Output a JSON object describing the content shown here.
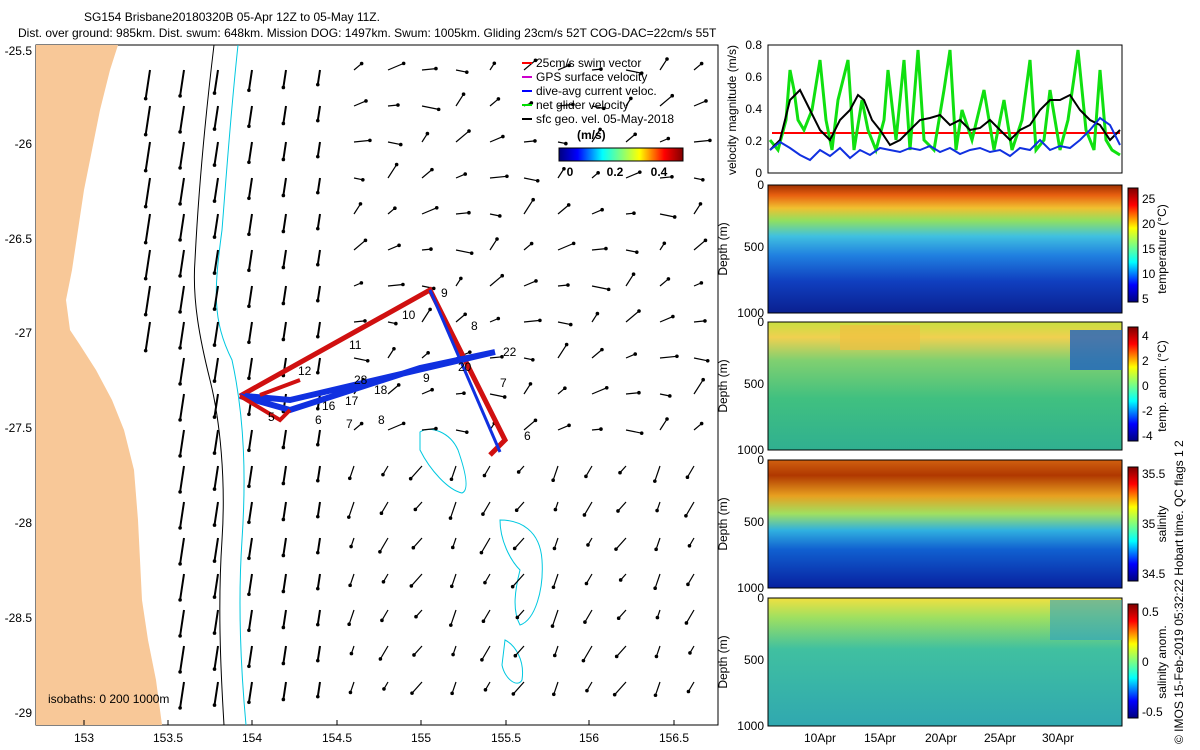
{
  "title": {
    "line1": "SG154 Brisbane20180320B 05-Apr 12Z to 05-May 11Z.",
    "line2": "Dist. over ground: 985km. Dist. swum: 648km. Mission DOG: 1497km. Swum: 1005km. Gliding 23cm/s 52T COG-DAC=22cm/s 55T"
  },
  "map": {
    "lon_ticks": [
      "153",
      "153.5",
      "154",
      "154.5",
      "155",
      "155.5",
      "156",
      "156.5"
    ],
    "lat_ticks": [
      "-25.5",
      "-26",
      "-26.5",
      "-27",
      "-27.5",
      "-28",
      "-28.5",
      "-29"
    ],
    "legend": {
      "items": [
        {
          "label": "25cm/s swim vector",
          "color": "#ff0000"
        },
        {
          "label": "GPS surface velocity",
          "color": "#cc00cc"
        },
        {
          "label": "dive-avg current veloc.",
          "color": "#0000ff"
        },
        {
          "label": "net glider velocity",
          "color": "#00dd00"
        },
        {
          "label": "sfc geo. vel. 05-May-2018",
          "color": "#000000"
        }
      ],
      "colorbar_title": "(m/s)",
      "colorbar_ticks": [
        "0",
        "0.2",
        "0.4"
      ]
    },
    "isobaths_label": "isobaths: 0   200  1000m",
    "track_day_labels": [
      "9",
      "10",
      "11",
      "12",
      "8",
      "22",
      "20",
      "7",
      "6",
      "5",
      "6",
      "7",
      "8",
      "18",
      "17",
      "16",
      "28",
      "9"
    ]
  },
  "velocity_panel": {
    "ylabel": "velocity magnitude (m/s)",
    "yticks": [
      "0",
      "0.2",
      "0.4",
      "0.6",
      "0.8"
    ],
    "swim_reference": 0.25
  },
  "section_panels": [
    {
      "name": "temperature",
      "clabel": "temperature (°C)",
      "cticks": [
        "25",
        "20",
        "15",
        "10",
        "5"
      ],
      "yticks": [
        "0",
        "500",
        "1000"
      ],
      "ylabel": "Depth (m)"
    },
    {
      "name": "temp-anomaly",
      "clabel": "temp. anom. (°C)",
      "cticks": [
        "4",
        "2",
        "0",
        "-2",
        "-4"
      ],
      "yticks": [
        "0",
        "500",
        "1000"
      ],
      "ylabel": "Depth (m)"
    },
    {
      "name": "salinity",
      "clabel": "salinity",
      "cticks": [
        "35.5",
        "35",
        "34.5"
      ],
      "yticks": [
        "0",
        "500",
        "1000"
      ],
      "ylabel": "Depth (m)"
    },
    {
      "name": "salinity-anomaly",
      "clabel": "salinity anom.",
      "cticks": [
        "0.5",
        "0",
        "-0.5"
      ],
      "yticks": [
        "0",
        "500",
        "1000"
      ],
      "ylabel": "Depth (m)"
    }
  ],
  "time_axis": [
    "10Apr",
    "15Apr",
    "20Apr",
    "25Apr",
    "30Apr"
  ],
  "copyright": "© IMOS 15-Feb-2019 05:32:22 Hobart time. QC flags 1  2"
}
